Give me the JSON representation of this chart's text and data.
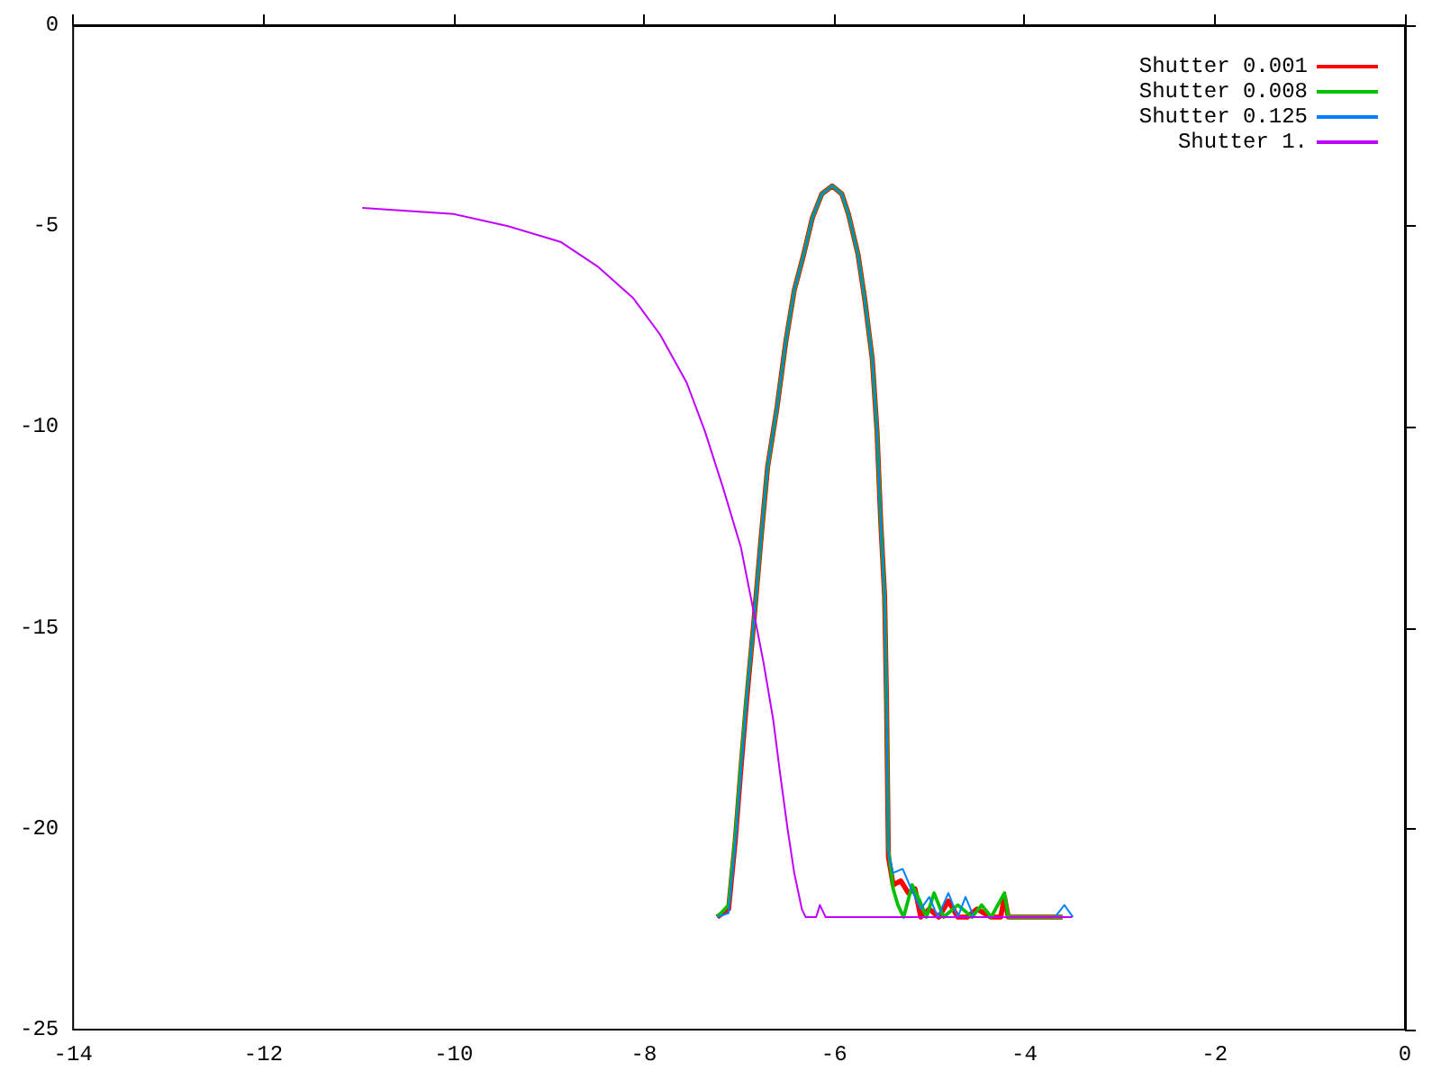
{
  "chart_data": {
    "type": "line",
    "xlim": [
      -14,
      0
    ],
    "xticks": [
      -14,
      -12,
      -10,
      -8,
      -6,
      -4,
      -2,
      0
    ],
    "ylim": [
      -25,
      0
    ],
    "yticks": [
      -25,
      -20,
      -15,
      -10,
      -5,
      0
    ],
    "grid": false,
    "legend": "top right",
    "marker": "none",
    "line_style": "solid",
    "series": [
      {
        "name": "Shutter 0.001",
        "color": "#ff0000",
        "x": [
          -7.23,
          -7.11,
          -7.04,
          -6.98,
          -6.92,
          -6.85,
          -6.77,
          -6.7,
          -6.6,
          -6.51,
          -6.42,
          -6.32,
          -6.23,
          -6.13,
          -6.02,
          -5.92,
          -5.85,
          -5.75,
          -5.68,
          -5.6,
          -5.55,
          -5.51,
          -5.47,
          -5.45,
          -5.43,
          -5.38,
          -5.3,
          -5.22,
          -5.15,
          -5.09,
          -5.0,
          -4.9,
          -4.8,
          -4.7,
          -4.6,
          -4.5,
          -4.35,
          -4.25,
          -4.21,
          -4.17,
          -4.0,
          -3.6
        ],
        "values": [
          -22.2,
          -22.0,
          -20.3,
          -18.5,
          -16.8,
          -15.0,
          -12.8,
          -11.0,
          -9.5,
          -7.9,
          -6.6,
          -5.7,
          -4.8,
          -4.2,
          -4.0,
          -4.2,
          -4.7,
          -5.7,
          -6.8,
          -8.3,
          -10.1,
          -12.4,
          -14.2,
          -16.8,
          -20.7,
          -21.4,
          -21.3,
          -21.6,
          -21.5,
          -22.2,
          -22.0,
          -22.2,
          -21.8,
          -22.2,
          -22.2,
          -22.0,
          -22.2,
          -22.2,
          -21.7,
          -22.2,
          -22.2,
          -22.2
        ]
      },
      {
        "name": "Shutter 0.008",
        "color": "#00c000",
        "x": [
          -7.23,
          -7.11,
          -7.04,
          -6.98,
          -6.92,
          -6.85,
          -6.77,
          -6.7,
          -6.6,
          -6.51,
          -6.42,
          -6.32,
          -6.23,
          -6.13,
          -6.02,
          -5.92,
          -5.85,
          -5.75,
          -5.68,
          -5.6,
          -5.55,
          -5.51,
          -5.47,
          -5.45,
          -5.43,
          -5.38,
          -5.33,
          -5.27,
          -5.18,
          -5.1,
          -5.03,
          -4.95,
          -4.85,
          -4.7,
          -4.55,
          -4.45,
          -4.35,
          -4.21,
          -4.17,
          -4.0,
          -3.6
        ],
        "values": [
          -22.2,
          -21.9,
          -20.2,
          -18.4,
          -16.7,
          -15.0,
          -12.8,
          -11.0,
          -9.5,
          -7.9,
          -6.6,
          -5.7,
          -4.8,
          -4.2,
          -4.0,
          -4.2,
          -4.7,
          -5.7,
          -6.8,
          -8.3,
          -10.1,
          -12.4,
          -14.2,
          -16.8,
          -20.5,
          -21.5,
          -21.9,
          -22.2,
          -21.4,
          -21.8,
          -22.2,
          -21.6,
          -22.2,
          -21.9,
          -22.2,
          -21.9,
          -22.2,
          -21.6,
          -22.2,
          -22.2,
          -22.2
        ]
      },
      {
        "name": "Shutter 0.125",
        "color": "#0080ff",
        "x": [
          -7.23,
          -7.11,
          -7.04,
          -6.98,
          -6.92,
          -6.85,
          -6.77,
          -6.7,
          -6.6,
          -6.51,
          -6.42,
          -6.32,
          -6.23,
          -6.13,
          -6.02,
          -5.92,
          -5.85,
          -5.75,
          -5.68,
          -5.6,
          -5.55,
          -5.51,
          -5.47,
          -5.45,
          -5.43,
          -5.38,
          -5.28,
          -5.19,
          -5.09,
          -5.0,
          -4.91,
          -4.8,
          -4.7,
          -4.62,
          -4.53,
          -4.3,
          -3.68,
          -3.58,
          -3.49
        ],
        "values": [
          -22.2,
          -22.1,
          -20.4,
          -18.6,
          -16.8,
          -15.0,
          -12.8,
          -11.0,
          -9.5,
          -7.9,
          -6.6,
          -5.7,
          -4.8,
          -4.2,
          -4.0,
          -4.2,
          -4.7,
          -5.7,
          -6.8,
          -8.3,
          -10.1,
          -12.4,
          -14.2,
          -16.8,
          -20.6,
          -21.1,
          -21.0,
          -21.5,
          -22.0,
          -21.7,
          -22.2,
          -21.6,
          -22.2,
          -21.7,
          -22.2,
          -22.2,
          -22.2,
          -21.9,
          -22.2
        ]
      },
      {
        "name": "Shutter 1.",
        "color": "#c000ff",
        "x": [
          -10.96,
          -10.0,
          -9.43,
          -8.87,
          -8.49,
          -8.11,
          -7.83,
          -7.55,
          -7.36,
          -7.17,
          -6.98,
          -6.83,
          -6.74,
          -6.64,
          -6.57,
          -6.49,
          -6.42,
          -6.34,
          -6.3,
          -6.19,
          -6.15,
          -6.09,
          -3.5
        ],
        "values": [
          -4.55,
          -4.7,
          -5.0,
          -5.4,
          -6.0,
          -6.8,
          -7.7,
          -8.9,
          -10.1,
          -11.5,
          -13.0,
          -14.8,
          -15.9,
          -17.3,
          -18.6,
          -20.0,
          -21.1,
          -22.0,
          -22.2,
          -22.2,
          -21.9,
          -22.2,
          -22.2
        ]
      }
    ]
  }
}
